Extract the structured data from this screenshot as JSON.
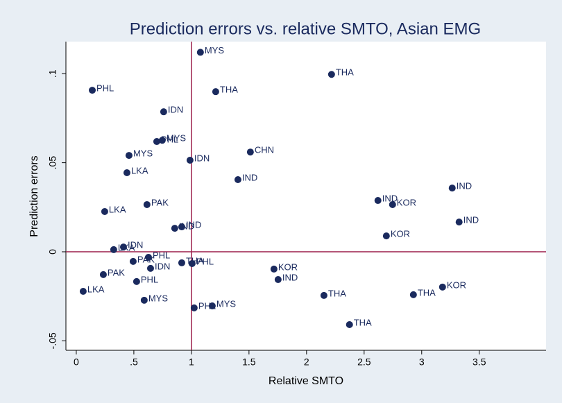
{
  "chart_data": {
    "type": "scatter",
    "title": "Prediction errors vs. relative SMTO, Asian EMG",
    "x_label": "Relative SMTO",
    "y_label": "Prediction errors",
    "color": "#1a2a5e",
    "reference_color": "#9c1f4a",
    "reference_lines": {
      "x": 1,
      "y": 0
    },
    "xlim": [
      -0.09,
      4.08
    ],
    "ylim": [
      -0.0553,
      0.118
    ],
    "xticks": [
      0,
      {
        "value": 0.5,
        "label": ".5"
      },
      1,
      1.5,
      2,
      2.5,
      3,
      3.5
    ],
    "yticks": [
      {
        "value": -0.05,
        "label": "-.05"
      },
      0,
      {
        "value": 0.05,
        "label": ".05"
      },
      {
        "value": 0.1,
        "label": ".1"
      }
    ],
    "series": [
      {
        "name": "Prediction errors",
        "labels": [
          "MYS",
          "THA",
          "PHL",
          "THA",
          "IDN",
          "PHL",
          "MYS",
          "MYS",
          "CHN",
          "IDN",
          "LKA",
          "IND",
          "IND",
          "IND",
          "KOR",
          "PAK",
          "LKA",
          "IND",
          "IND",
          "IND",
          "KOR",
          "IDN",
          "LKA",
          "PHL",
          "PAK",
          "THA",
          "PHL",
          "IDN",
          "KOR",
          "IND",
          "PAK",
          "PHL",
          "LKA",
          "THA",
          "THA",
          "KOR",
          "MYS",
          "PHL",
          "MYS",
          "THA"
        ],
        "x": [
          1.078,
          2.217,
          0.139,
          1.211,
          0.759,
          0.699,
          0.747,
          0.458,
          1.512,
          0.988,
          0.44,
          1.404,
          3.265,
          2.62,
          2.747,
          0.614,
          0.247,
          3.325,
          0.855,
          0.916,
          2.693,
          0.41,
          0.325,
          0.627,
          0.494,
          0.916,
          1.006,
          0.645,
          1.717,
          1.753,
          0.235,
          0.524,
          0.06,
          2.151,
          2.928,
          3.181,
          0.59,
          1.024,
          1.181,
          2.373
        ],
        "values": [
          0.112,
          0.0996,
          0.0907,
          0.0899,
          0.0786,
          0.0619,
          0.0626,
          0.0541,
          0.056,
          0.0514,
          0.0444,
          0.0405,
          0.0358,
          0.0288,
          0.0265,
          0.0265,
          0.0226,
          0.0167,
          0.0132,
          0.014,
          0.0089,
          0.0027,
          0.0012,
          -0.0031,
          -0.0054,
          -0.0062,
          -0.0066,
          -0.0093,
          -0.0097,
          -0.0156,
          -0.0128,
          -0.0167,
          -0.0222,
          -0.0245,
          -0.0241,
          -0.0198,
          -0.0272,
          -0.0315,
          -0.0304,
          -0.0409
        ]
      }
    ]
  }
}
